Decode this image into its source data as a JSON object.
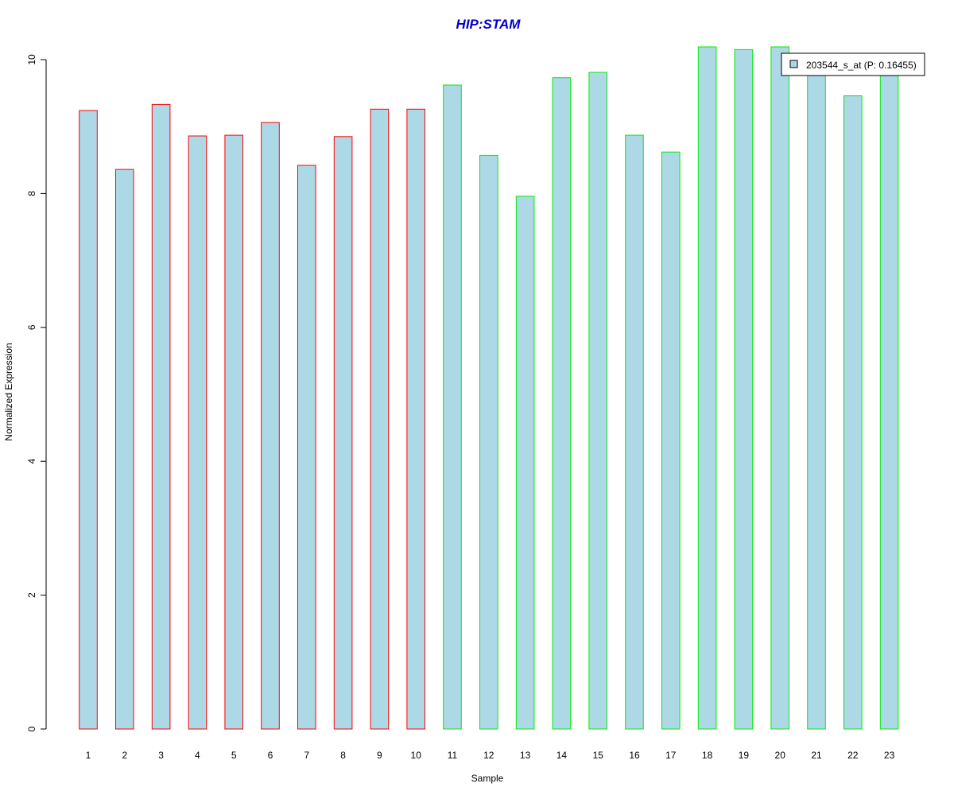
{
  "chart_data": {
    "type": "bar",
    "title": "HIP:STAM",
    "xlabel": "Sample",
    "ylabel": "Normalized Expression",
    "ylim": [
      0,
      10.2
    ],
    "yticks": [
      "0",
      "2",
      "4",
      "6",
      "8",
      "10"
    ],
    "categories": [
      "1",
      "2",
      "3",
      "4",
      "5",
      "6",
      "7",
      "8",
      "9",
      "10",
      "11",
      "12",
      "13",
      "14",
      "15",
      "16",
      "17",
      "18",
      "19",
      "20",
      "21",
      "22",
      "23"
    ],
    "series": [
      {
        "name": "203544_s_at (P: 0.16455)",
        "values": [
          9.24,
          8.36,
          9.33,
          8.86,
          8.87,
          9.06,
          8.42,
          8.85,
          9.26,
          9.26,
          9.62,
          8.57,
          7.96,
          9.73,
          9.81,
          8.87,
          8.62,
          10.19,
          10.15,
          10.19,
          9.98,
          9.46,
          10.03
        ]
      }
    ],
    "groups": [
      "red",
      "red",
      "red",
      "red",
      "red",
      "red",
      "red",
      "red",
      "red",
      "red",
      "green",
      "green",
      "green",
      "green",
      "green",
      "green",
      "green",
      "green",
      "green",
      "green",
      "green",
      "green",
      "green"
    ],
    "grid": false,
    "legend_position": "top-right"
  },
  "colors": {
    "title": "#0000cc",
    "bar_fill": "#add8e6",
    "group_red": "#ff0000",
    "group_green": "#00ee00",
    "axis": "#000000"
  }
}
